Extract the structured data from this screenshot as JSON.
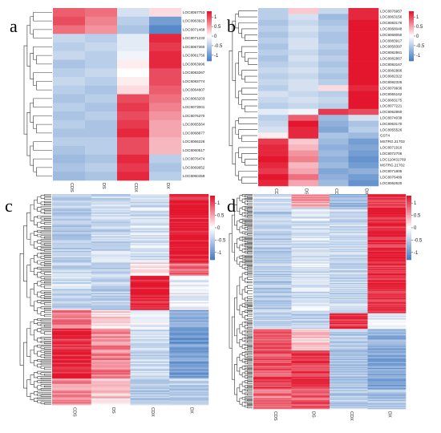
{
  "figure": {
    "title": "",
    "colors": {
      "low": "#4a7fc4",
      "mid": "#ffffff",
      "high": "#e3162e"
    }
  },
  "chart_data": [
    {
      "type": "heatmap",
      "panel": "a",
      "columns": [
        "CDS",
        "DS",
        "CDX",
        "DX"
      ],
      "rows": [
        "LOC8057753",
        "LOC8063923",
        "LOC8071468",
        "LOC8071233",
        "LOC8067360",
        "LOC8061756",
        "LOC8063996",
        "LOC8083267",
        "LOC8083774",
        "LOC8064807",
        "LOC8063203",
        "LOC8073001",
        "LOC8076370",
        "LOC8065564",
        "LOC8068877",
        "LOC8066226",
        "LOC8060517",
        "LOC8076474",
        "LOC8069652",
        "LOC8060459"
      ],
      "values": [
        [
          0.9,
          0.8,
          -0.3,
          0.2
        ],
        [
          1.0,
          0.7,
          -0.5,
          -1.0
        ],
        [
          0.8,
          0.6,
          -0.6,
          -1.2
        ],
        [
          -0.4,
          -0.5,
          -0.2,
          1.2
        ],
        [
          -0.5,
          -0.4,
          -0.2,
          1.1
        ],
        [
          -0.4,
          -0.5,
          -0.1,
          1.2
        ],
        [
          -0.6,
          -0.5,
          0.1,
          1.2
        ],
        [
          -0.5,
          -0.4,
          0.0,
          1.0
        ],
        [
          -0.4,
          -0.5,
          0.1,
          1.0
        ],
        [
          -0.5,
          -0.6,
          0.2,
          0.9
        ],
        [
          -0.6,
          -0.5,
          1.0,
          0.8
        ],
        [
          -0.5,
          -0.6,
          1.1,
          0.7
        ],
        [
          -0.6,
          -0.5,
          1.0,
          0.6
        ],
        [
          -0.5,
          -0.6,
          1.1,
          0.5
        ],
        [
          -0.6,
          -0.6,
          1.2,
          0.5
        ],
        [
          -0.5,
          -0.5,
          1.0,
          0.4
        ],
        [
          -0.6,
          -0.5,
          1.0,
          0.4
        ],
        [
          -0.7,
          -0.6,
          1.2,
          -0.5
        ],
        [
          -0.6,
          -0.5,
          1.1,
          -0.6
        ],
        [
          -0.7,
          -0.6,
          1.2,
          -0.5
        ]
      ],
      "colorbar_ticks": [
        1,
        0.5,
        0,
        -0.5,
        -1
      ],
      "colorbar_tick_labels": [
        "1",
        "0.5",
        "0",
        "-0.5",
        "-1"
      ]
    },
    {
      "type": "heatmap",
      "panel": "b",
      "columns": [
        "CDS",
        "DS",
        "CDX",
        "DX"
      ],
      "rows": [
        "LOC8076957",
        "LOC8063156",
        "LOC8083176",
        "LOC8068048",
        "LOC8068050",
        "LOC8083917",
        "LOC8058397",
        "LOC8082861",
        "LOC8082867",
        "LOC8083167",
        "LOC8082866",
        "LOC8082322",
        "LOC8082325",
        "LOC8079936",
        "LOC8065162",
        "LOC8083175",
        "LOC8077221",
        "LOC8062860",
        "LOC8074038",
        "LOC8063170",
        "LOC8055526",
        "GST4",
        "MSTRG.21703",
        "LOC8071910",
        "LOC8072706",
        "LOC110431769",
        "MSTRG.21702",
        "LOC8071805",
        "LOC8076489",
        "LOC8062620"
      ],
      "values": [
        [
          -0.5,
          0.3,
          -0.4,
          1.2
        ],
        [
          -0.5,
          -0.3,
          -0.7,
          1.2
        ],
        [
          -0.6,
          -0.4,
          -0.6,
          1.3
        ],
        [
          -0.5,
          -0.3,
          -0.5,
          1.3
        ],
        [
          -0.6,
          -0.4,
          -0.6,
          1.3
        ],
        [
          -0.5,
          -0.3,
          -0.6,
          1.3
        ],
        [
          -0.6,
          -0.3,
          -0.5,
          1.3
        ],
        [
          -0.5,
          -0.4,
          -0.6,
          1.3
        ],
        [
          -0.6,
          -0.3,
          -0.5,
          1.3
        ],
        [
          -0.5,
          -0.4,
          -0.6,
          1.3
        ],
        [
          -0.4,
          -0.3,
          -0.5,
          1.3
        ],
        [
          -0.5,
          -0.4,
          -0.6,
          1.3
        ],
        [
          -0.4,
          -0.3,
          -0.5,
          1.3
        ],
        [
          -0.5,
          -0.3,
          0.2,
          1.2
        ],
        [
          -0.3,
          -0.4,
          -0.5,
          1.3
        ],
        [
          -0.4,
          -0.3,
          -0.4,
          1.3
        ],
        [
          -0.5,
          -0.4,
          -0.5,
          1.3
        ],
        [
          -0.2,
          -0.1,
          1.1,
          1.0
        ],
        [
          -0.5,
          0.9,
          -0.7,
          -0.3
        ],
        [
          -0.4,
          1.3,
          -0.8,
          -0.6
        ],
        [
          -0.3,
          1.2,
          -0.9,
          -0.5
        ],
        [
          0.1,
          1.2,
          -0.6,
          -0.7
        ],
        [
          1.1,
          0.3,
          -0.7,
          -1.0
        ],
        [
          1.2,
          0.4,
          -0.8,
          -0.9
        ],
        [
          1.2,
          0.6,
          -0.7,
          -1.0
        ],
        [
          1.3,
          0.7,
          -0.8,
          -1.1
        ],
        [
          1.2,
          0.4,
          -0.7,
          -1.0
        ],
        [
          1.1,
          0.5,
          -0.9,
          -0.8
        ],
        [
          1.3,
          0.8,
          -0.8,
          -1.0
        ],
        [
          1.2,
          0.5,
          -0.7,
          -1.1
        ]
      ],
      "colorbar_ticks": [
        1,
        0.5,
        0,
        -0.5,
        -1
      ],
      "colorbar_tick_labels": [
        "1",
        "0.5",
        "0",
        "-0.5",
        "-1"
      ]
    },
    {
      "type": "heatmap",
      "panel": "c",
      "columns": [
        "CDS",
        "DS",
        "CDX",
        "DX"
      ],
      "row_count": 160,
      "cluster_profiles": [
        {
          "rows": 52,
          "values": [
            -0.5,
            -0.4,
            -0.3,
            1.3
          ]
        },
        {
          "rows": 10,
          "values": [
            -0.4,
            -0.4,
            0.2,
            0.8
          ]
        },
        {
          "rows": 26,
          "values": [
            -0.4,
            -0.5,
            1.3,
            -0.1
          ]
        },
        {
          "rows": 14,
          "values": [
            0.7,
            0.3,
            -0.1,
            -0.9
          ]
        },
        {
          "rows": 38,
          "values": [
            1.2,
            0.7,
            -0.4,
            -1.0
          ]
        },
        {
          "rows": 20,
          "values": [
            0.6,
            0.3,
            -0.6,
            -0.5
          ]
        }
      ],
      "colorbar_ticks": [
        1,
        0.5,
        0,
        -0.5,
        -1
      ],
      "colorbar_tick_labels": [
        "1",
        "0.5",
        "0",
        "-0.5",
        "-1"
      ]
    },
    {
      "type": "heatmap",
      "panel": "d",
      "columns": [
        "CDS",
        "DS",
        "CDX",
        "DX"
      ],
      "row_count": 220,
      "cluster_profiles": [
        {
          "rows": 14,
          "values": [
            -0.3,
            0.6,
            -0.7,
            1.1
          ]
        },
        {
          "rows": 108,
          "values": [
            -0.5,
            -0.3,
            -0.4,
            1.2
          ]
        },
        {
          "rows": 16,
          "values": [
            -0.4,
            -0.5,
            1.2,
            -0.2
          ]
        },
        {
          "rows": 22,
          "values": [
            0.9,
            0.3,
            -0.5,
            -0.8
          ]
        },
        {
          "rows": 40,
          "values": [
            1.0,
            1.1,
            -0.6,
            -0.9
          ]
        },
        {
          "rows": 20,
          "values": [
            0.8,
            0.9,
            -0.5,
            -0.6
          ]
        }
      ],
      "colorbar_ticks": [
        1,
        0.5,
        0,
        -0.5,
        -1
      ],
      "colorbar_tick_labels": [
        "1",
        "0.5",
        "0",
        "-0.5",
        "-1"
      ]
    }
  ]
}
